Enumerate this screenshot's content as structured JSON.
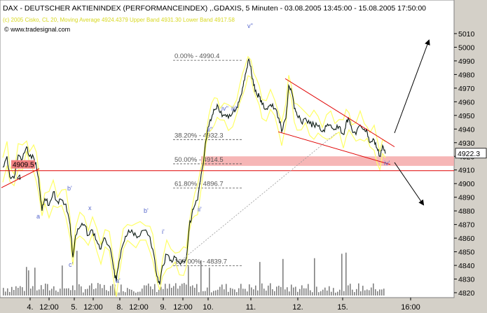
{
  "chart_data": {
    "type": "line",
    "title": "DAX  - DEUTSCHER AKTIENINDEX (PERFORMANCEINDEX) ,.GDAXIS, 5 Minuten - 03.08.2005 13:45:00 - 15.08.2005 17:50:00",
    "legend": "(c) 2005 Cisko, CL 20, Moving Average 4924.4379 Upper Band 4931.30 Lower Band 4917.58",
    "watermark": "www.tradesignal.com",
    "ylim": [
      4815,
      5015
    ],
    "y_ticks": [
      "5010",
      "5000",
      "4990",
      "4980",
      "4970",
      "4960",
      "4950",
      "4940",
      "4930",
      "4920",
      "4910",
      "4900",
      "4890",
      "4880",
      "4870",
      "4860",
      "4850",
      "4840",
      "4830",
      "4820"
    ],
    "x_ticks": [
      "4.",
      "12:00",
      "5.",
      "12:00",
      "8.",
      "12:00",
      "9.",
      "12:00",
      "10.",
      "11.",
      "12.",
      "15.",
      "16:00"
    ],
    "last_price": "4922.3",
    "price_series": [
      [
        0,
        4912
      ],
      [
        6,
        4920
      ],
      [
        10,
        4905
      ],
      [
        16,
        4904
      ],
      [
        22,
        4921
      ],
      [
        28,
        4918
      ],
      [
        34,
        4927
      ],
      [
        38,
        4920
      ],
      [
        44,
        4919
      ],
      [
        48,
        4912
      ],
      [
        52,
        4898
      ],
      [
        56,
        4880
      ],
      [
        60,
        4889
      ],
      [
        66,
        4884
      ],
      [
        72,
        4894
      ],
      [
        78,
        4887
      ],
      [
        84,
        4888
      ],
      [
        90,
        4885
      ],
      [
        96,
        4870
      ],
      [
        100,
        4846
      ],
      [
        104,
        4862
      ],
      [
        110,
        4868
      ],
      [
        116,
        4870
      ],
      [
        122,
        4862
      ],
      [
        128,
        4866
      ],
      [
        134,
        4858
      ],
      [
        140,
        4852
      ],
      [
        146,
        4860
      ],
      [
        152,
        4854
      ],
      [
        158,
        4838
      ],
      [
        162,
        4828
      ],
      [
        166,
        4843
      ],
      [
        172,
        4856
      ],
      [
        178,
        4863
      ],
      [
        184,
        4866
      ],
      [
        190,
        4862
      ],
      [
        196,
        4862
      ],
      [
        204,
        4866
      ],
      [
        210,
        4861
      ],
      [
        214,
        4852
      ],
      [
        220,
        4832
      ],
      [
        224,
        4826
      ],
      [
        228,
        4840
      ],
      [
        234,
        4848
      ],
      [
        240,
        4844
      ],
      [
        246,
        4846
      ],
      [
        252,
        4842
      ],
      [
        258,
        4843
      ],
      [
        262,
        4846
      ],
      [
        266,
        4868
      ],
      [
        270,
        4878
      ],
      [
        274,
        4884
      ],
      [
        278,
        4888
      ],
      [
        282,
        4902
      ],
      [
        286,
        4914
      ],
      [
        290,
        4932
      ],
      [
        294,
        4942
      ],
      [
        298,
        4948
      ],
      [
        302,
        4954
      ],
      [
        306,
        4958
      ],
      [
        310,
        4952
      ],
      [
        316,
        4950
      ],
      [
        322,
        4948
      ],
      [
        328,
        4952
      ],
      [
        334,
        4956
      ],
      [
        338,
        4962
      ],
      [
        342,
        4970
      ],
      [
        346,
        4980
      ],
      [
        350,
        4990
      ],
      [
        354,
        4986
      ],
      [
        358,
        4972
      ],
      [
        362,
        4966
      ],
      [
        366,
        4964
      ],
      [
        370,
        4958
      ],
      [
        376,
        4955
      ],
      [
        382,
        4958
      ],
      [
        388,
        4955
      ],
      [
        394,
        4948
      ],
      [
        398,
        4938
      ],
      [
        404,
        4948
      ],
      [
        408,
        4972
      ],
      [
        412,
        4968
      ],
      [
        416,
        4955
      ],
      [
        420,
        4950
      ],
      [
        426,
        4945
      ],
      [
        432,
        4948
      ],
      [
        438,
        4944
      ],
      [
        444,
        4943
      ],
      [
        450,
        4942
      ],
      [
        456,
        4938
      ],
      [
        462,
        4942
      ],
      [
        468,
        4943
      ],
      [
        474,
        4940
      ],
      [
        480,
        4942
      ],
      [
        486,
        4936
      ],
      [
        490,
        4945
      ],
      [
        494,
        4947
      ],
      [
        498,
        4940
      ],
      [
        504,
        4936
      ],
      [
        510,
        4943
      ],
      [
        516,
        4940
      ],
      [
        520,
        4938
      ],
      [
        524,
        4930
      ],
      [
        530,
        4932
      ],
      [
        534,
        4926
      ],
      [
        538,
        4920
      ],
      [
        542,
        4928
      ],
      [
        546,
        4922
      ]
    ],
    "fibonacci": [
      {
        "label": "0.00% - 4990.4",
        "value": 4990.4
      },
      {
        "label": "38.20% - 4932.3",
        "value": 4932.3
      },
      {
        "label": "50.00% - 4914.5",
        "value": 4914.5
      },
      {
        "label": "61.80% - 4896.7",
        "value": 4896.7
      },
      {
        "label": "100.00% - 4839.7",
        "value": 4839.7
      }
    ],
    "horizontal_line": {
      "label": "4909.5",
      "value": 4909.5
    },
    "zone": {
      "from": 4913,
      "to": 4920
    },
    "wave_labels": [
      "4",
      "a",
      "b'",
      "x",
      "b'",
      "c'",
      "a'",
      "i'",
      "ii'",
      "iii'",
      "ii''",
      "iii''",
      "iv''",
      "v''",
      "iii'",
      "iv'"
    ]
  },
  "colors": {
    "background": "#ffffff",
    "frame": "#d4d0c8",
    "price": "#0b1a12",
    "bands": "#ffff66",
    "red": "#e00000",
    "zone": "#f4a9a9",
    "volume": "#808080",
    "fib": "#555555",
    "header": "#000000",
    "legend": "#d8d820"
  }
}
